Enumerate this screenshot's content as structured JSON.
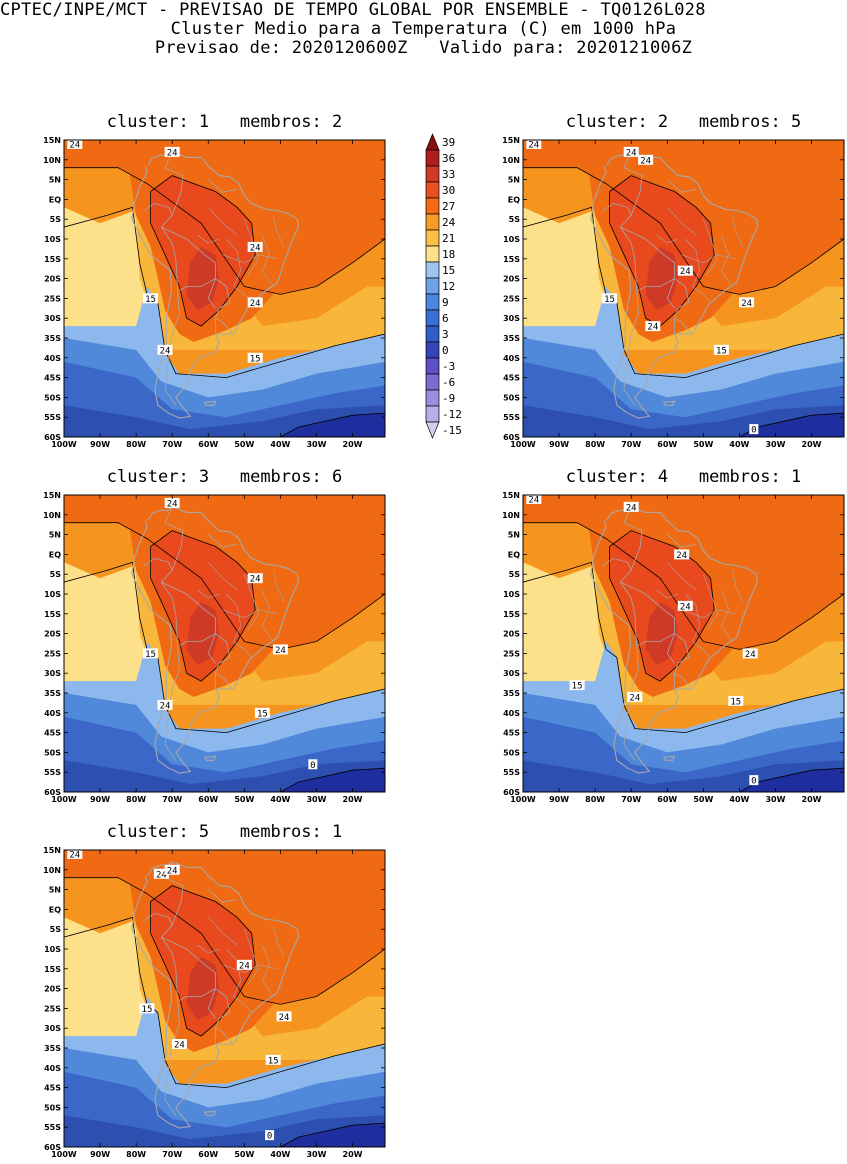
{
  "header": {
    "line1": "CPTEC/INPE/MCT - PREVISAO DE TEMPO GLOBAL POR ENSEMBLE - TQ0126L028",
    "line2": "Cluster Medio para a Temperatura (C) em 1000 hPa",
    "line3": "Previsao de: 2020120600Z   Valido para: 2020121006Z"
  },
  "lat_labels": [
    "15N",
    "10N",
    "5N",
    "EQ",
    "5S",
    "10S",
    "15S",
    "20S",
    "25S",
    "30S",
    "35S",
    "40S",
    "45S",
    "50S",
    "55S",
    "60S"
  ],
  "lon_labels": [
    "100W",
    "90W",
    "80W",
    "70W",
    "60W",
    "50W",
    "40W",
    "30W",
    "20W"
  ],
  "colorbar": {
    "labels": [
      "39",
      "36",
      "33",
      "30",
      "27",
      "24",
      "21",
      "18",
      "15",
      "12",
      "9",
      "6",
      "3",
      "0",
      "-3",
      "-6",
      "-9",
      "-12",
      "-15"
    ],
    "colors": [
      "#8b0f0f",
      "#b01d1d",
      "#cf3a26",
      "#e8501f",
      "#f56a14",
      "#f89a26",
      "#fbc04a",
      "#fde08a",
      "#9ec4f0",
      "#6ea2e8",
      "#4c86de",
      "#3a6fd2",
      "#2f5fc6",
      "#3544b8",
      "#5e50c6",
      "#7c6cd2",
      "#9c8ede",
      "#b9aee8",
      "#d6ceef"
    ]
  },
  "panels": [
    {
      "title": "cluster: 1   membros: 2",
      "labels": [
        [
          "24",
          -97,
          14
        ],
        [
          "24",
          -70,
          12
        ],
        [
          "24",
          -47,
          -12
        ],
        [
          "24",
          -47,
          -26
        ],
        [
          "24",
          -72,
          -38
        ],
        [
          "15",
          -76,
          -25
        ],
        [
          "15",
          -47,
          -40
        ]
      ]
    },
    {
      "title": "cluster: 2   membros: 5",
      "labels": [
        [
          "24",
          -97,
          14
        ],
        [
          "24",
          -70,
          12
        ],
        [
          "24",
          -66,
          10
        ],
        [
          "24",
          -55,
          -18
        ],
        [
          "24",
          -38,
          -26
        ],
        [
          "24",
          -64,
          -32
        ],
        [
          "15",
          -76,
          -25
        ],
        [
          "15",
          -45,
          -38
        ],
        [
          "0",
          -36,
          -58
        ]
      ]
    },
    {
      "title": "cluster: 3   membros: 6",
      "labels": [
        [
          "24",
          -70,
          13
        ],
        [
          "24",
          -47,
          -6
        ],
        [
          "24",
          -40,
          -24
        ],
        [
          "24",
          -72,
          -38
        ],
        [
          "15",
          -76,
          -25
        ],
        [
          "15",
          -45,
          -40
        ],
        [
          "0",
          -31,
          -53
        ]
      ]
    },
    {
      "title": "cluster: 4   membros: 1",
      "labels": [
        [
          "24",
          -97,
          14
        ],
        [
          "24",
          -70,
          12
        ],
        [
          "24",
          -56,
          0
        ],
        [
          "24",
          -55,
          -13
        ],
        [
          "24",
          -37,
          -25
        ],
        [
          "24",
          -69,
          -36
        ],
        [
          "15",
          -85,
          -33
        ],
        [
          "15",
          -41,
          -37
        ],
        [
          "0",
          -36,
          -57
        ]
      ]
    },
    {
      "title": "cluster: 5   membros: 1",
      "labels": [
        [
          "24",
          -97,
          14
        ],
        [
          "24",
          -73,
          9
        ],
        [
          "24",
          -70,
          10
        ],
        [
          "24",
          -50,
          -14
        ],
        [
          "24",
          -39,
          -27
        ],
        [
          "24",
          -68,
          -34
        ],
        [
          "15",
          -77,
          -25
        ],
        [
          "15",
          -42,
          -38
        ],
        [
          "0",
          -43,
          -57
        ]
      ]
    }
  ]
}
